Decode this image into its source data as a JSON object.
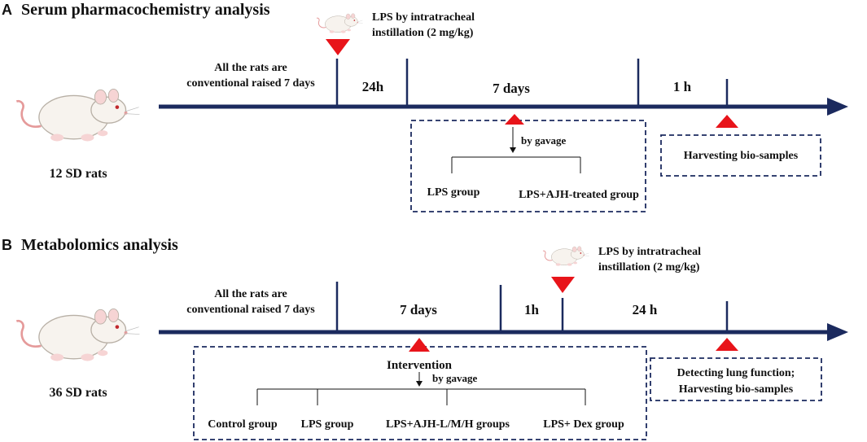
{
  "panel_a": {
    "letter": "A",
    "title": "Serum pharmacochemistry analysis",
    "subjects": "12 SD rats",
    "acclimation_line1": "All the rats are",
    "acclimation_line2": "conventional raised 7 days",
    "lps_line1": "LPS by intratracheal",
    "lps_line2": "instillation (2 mg/kg)",
    "interval_1": "24h",
    "interval_2": "7 days",
    "interval_3": "1 h",
    "route": "by gavage",
    "group_1": "LPS group",
    "group_2": "LPS+AJH-treated group",
    "endpoint": "Harvesting bio-samples"
  },
  "panel_b": {
    "letter": "B",
    "title": "Metabolomics analysis",
    "subjects": "36 SD rats",
    "acclimation_line1": "All the rats are",
    "acclimation_line2": "conventional raised 7 days",
    "lps_line1": "LPS by intratracheal",
    "lps_line2": "instillation (2 mg/kg)",
    "interval_1": "7 days",
    "interval_2": "1h",
    "interval_3": "24 h",
    "intervention": "Intervention",
    "route": "by gavage",
    "group_1": "Control group",
    "group_2": "LPS group",
    "group_3": "LPS+AJH-L/M/H groups",
    "group_4": "LPS+ Dex group",
    "endpoint_line1": "Detecting lung function;",
    "endpoint_line2": "Harvesting bio-samples"
  },
  "colors": {
    "timeline": "#1b2a5e",
    "marker": "#e8141a",
    "box_border": "#1b2a5e",
    "text": "#111111"
  }
}
